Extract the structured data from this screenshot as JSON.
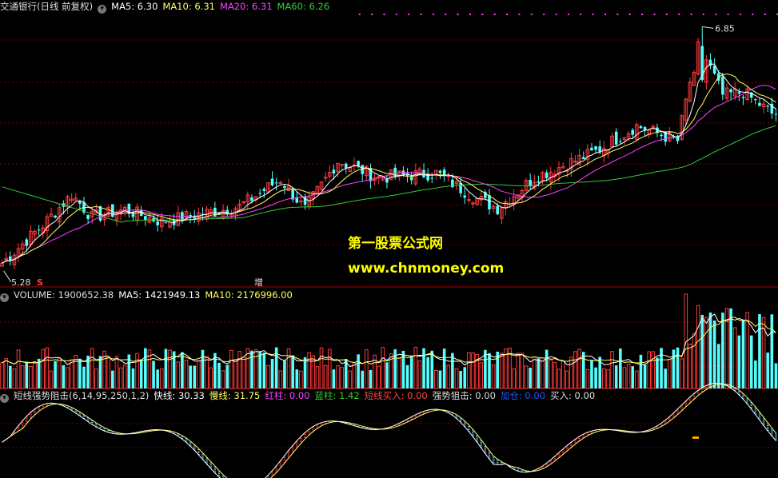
{
  "colors": {
    "up": "#ff3b3b",
    "down": "#54ffff",
    "ma5": "#ffffff",
    "ma10": "#ffff66",
    "ma20": "#ff44ff",
    "ma60": "#33cc33",
    "grid": "#7a0000",
    "label_white": "#dddddd",
    "fast_line": "#ffffff",
    "slow_line": "#ffff66",
    "red_col": "#ff3333",
    "blue_col": "#66ccff",
    "add_pos": "#2255ff",
    "buy_short": "#ff4444"
  },
  "icons": {
    "collapse": "chevron-down-icon"
  },
  "price_panel": {
    "title": "交通银行(日线 前复权)",
    "ma5_label": "MA5: 6.30",
    "ma10_label": "MA10: 6.31",
    "ma20_label": "MA20: 6.31",
    "ma60_label": "MA60: 6.26",
    "high_label": "6.85",
    "low_label": "5.28",
    "marker_s": "S",
    "marker_zeng": "增"
  },
  "volume_panel": {
    "volume_label": "VOLUME: 1900652.38",
    "ma5_label": "MA5: 1421949.13",
    "ma10_label": "MA10: 2176996.00"
  },
  "indicator_panel": {
    "name_label": "短线强势阻击(6,14,95,250,1,2)",
    "fast_label": "快线: 30.33",
    "slow_label": "慢线: 31.75",
    "red_label": "红柱: 0.00",
    "blue_label": "蓝柱: 1.42",
    "short_buy_label": "短线买入: 0.00",
    "strong_label": "强势狙击: 0.00",
    "add_label": "加仓: 0.00",
    "buy_label": "买入: 0.00"
  },
  "watermark": {
    "line1": "第一股票公式网",
    "line2": "www.chnmoney.com"
  },
  "chart_data": {
    "type": "candlestick",
    "title": "交通银行(日线 前复权)",
    "price_range_visible": [
      5.28,
      6.85
    ],
    "anchor_points": [
      {
        "x": 0,
        "close": 5.3
      },
      {
        "x": 10,
        "close": 5.55
      },
      {
        "x": 17,
        "close": 5.75
      },
      {
        "x": 22,
        "close": 5.6
      },
      {
        "x": 30,
        "close": 5.65
      },
      {
        "x": 39,
        "close": 5.57
      },
      {
        "x": 48,
        "close": 5.62
      },
      {
        "x": 58,
        "close": 5.67
      },
      {
        "x": 68,
        "close": 5.85
      },
      {
        "x": 74,
        "close": 5.65
      },
      {
        "x": 82,
        "close": 5.97
      },
      {
        "x": 92,
        "close": 5.86
      },
      {
        "x": 106,
        "close": 5.89
      },
      {
        "x": 116,
        "close": 5.72
      },
      {
        "x": 121,
        "close": 5.66
      },
      {
        "x": 130,
        "close": 5.86
      },
      {
        "x": 145,
        "close": 6.03
      },
      {
        "x": 155,
        "close": 6.2
      },
      {
        "x": 165,
        "close": 6.1
      },
      {
        "x": 170,
        "close": 6.75
      },
      {
        "x": 176,
        "close": 6.4
      },
      {
        "x": 181,
        "close": 6.42
      },
      {
        "x": 188,
        "close": 6.28
      }
    ],
    "moving_averages": [
      "MA5",
      "MA10",
      "MA20",
      "MA60"
    ],
    "volume_series": "VOLUME",
    "indicator": "短线强势阻击(6,14,95,250,1,2)"
  }
}
